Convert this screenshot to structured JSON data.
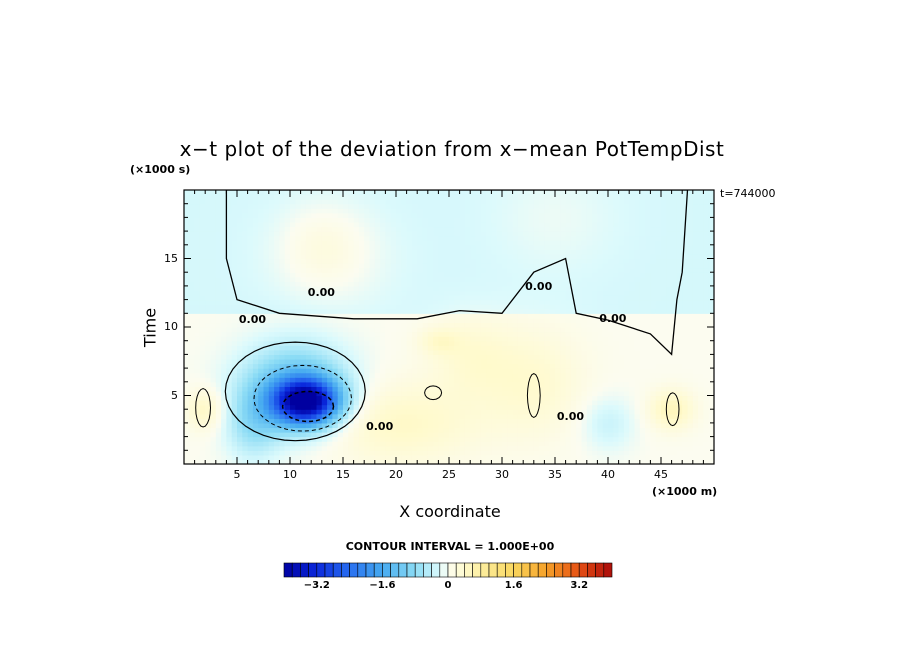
{
  "chart_data": {
    "type": "heatmap",
    "title": "x−t plot of the deviation from x−mean PotTempDist",
    "xlabel": "X coordinate",
    "ylabel": "Time",
    "x_unit": "(×1000 m)",
    "y_unit": "(×1000 s)",
    "time_stamp": "t=744000",
    "xlim": [
      0,
      50
    ],
    "ylim": [
      0,
      20
    ],
    "x_ticks": [
      5,
      10,
      15,
      20,
      25,
      30,
      35,
      40,
      45
    ],
    "y_ticks": [
      5,
      10,
      15
    ],
    "zero_contour_labels": [
      "0.00",
      "0.00",
      "0.00",
      "0.00",
      "0.00",
      "0.00"
    ],
    "contour_interval_text": "CONTOUR INTERVAL = 1.000E+00",
    "colorbar": {
      "min": -4,
      "max": 4,
      "step": 0.2,
      "tick_labels": [
        "−3.2",
        "−1.6",
        "0",
        "1.6",
        "3.2"
      ],
      "tick_values": [
        -3.2,
        -1.6,
        0,
        1.6,
        3.2
      ]
    },
    "features": [
      {
        "kind": "minimum",
        "x": 11.5,
        "y": 4.5,
        "value": -3.5
      },
      {
        "kind": "negative-region",
        "x": 11,
        "y": 5,
        "value": -2
      },
      {
        "kind": "positive-region",
        "x": 20,
        "y": 3,
        "value": 0.6
      },
      {
        "kind": "positive-region",
        "x": 33,
        "y": 6,
        "value": 0.6
      },
      {
        "kind": "positive-region",
        "x": 46,
        "y": 4,
        "value": 0.8
      },
      {
        "kind": "negative-band",
        "y": 10.8,
        "value": -0.3
      }
    ]
  }
}
